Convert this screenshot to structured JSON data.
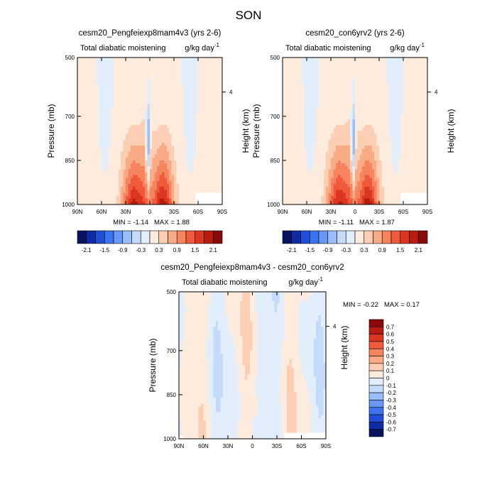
{
  "figure_title": "SON",
  "units_label": "g/kg day",
  "units_exponent": "-1",
  "chart_data": [
    {
      "type": "heatmap",
      "title": "cesm20_Pengfeiexp8mam4v3 (yrs 2-6)",
      "subtitle": "Total diabatic moistening",
      "units": "g/kg day-1",
      "ylabel": "Pressure (mb)",
      "ylabel_right": "Height (km)",
      "xlabel": "",
      "x_ticks": [
        "90N",
        "60N",
        "30N",
        "0",
        "30S",
        "60S",
        "90S"
      ],
      "x_values": [
        90,
        60,
        30,
        0,
        -30,
        -60,
        -90
      ],
      "y_ticks": [
        "500",
        "700",
        "850",
        "1000"
      ],
      "y_values": [
        500,
        700,
        850,
        1000
      ],
      "right_ticks": [
        "4"
      ],
      "ylim": [
        1000,
        500
      ],
      "xlim": [
        90,
        -90
      ],
      "min_label": "MIN = -1.14",
      "max_label": "MAX = 1.88",
      "min": -1.14,
      "max": 1.88,
      "colorbar": {
        "orientation": "horizontal",
        "colors": [
          "#07135f",
          "#0f2ba3",
          "#1f4fd6",
          "#3c73f0",
          "#6a96f5",
          "#9abef8",
          "#c4dcfa",
          "#e2eefc",
          "#fdebdd",
          "#fccfb4",
          "#f9ab86",
          "#f5845f",
          "#ee5a3b",
          "#dc3520",
          "#b81c10",
          "#8a0a0a"
        ],
        "tick_labels": [
          "-2.1",
          "-1.5",
          "-0.9",
          "-0.3",
          "0.3",
          "0.9",
          "1.5",
          "2.1"
        ]
      }
    },
    {
      "type": "heatmap",
      "title": "cesm20_con6yrv2 (yrs 2-6)",
      "subtitle": "Total diabatic moistening",
      "units": "g/kg day-1",
      "ylabel": "Pressure (mb)",
      "ylabel_right": "Height (km)",
      "xlabel": "",
      "x_ticks": [
        "90N",
        "60N",
        "30N",
        "0",
        "30S",
        "60S",
        "90S"
      ],
      "x_values": [
        90,
        60,
        30,
        0,
        -30,
        -60,
        -90
      ],
      "y_ticks": [
        "500",
        "700",
        "850",
        "1000"
      ],
      "y_values": [
        500,
        700,
        850,
        1000
      ],
      "right_ticks": [
        "4"
      ],
      "ylim": [
        1000,
        500
      ],
      "xlim": [
        90,
        -90
      ],
      "min_label": "MIN = -1.11",
      "max_label": "MAX = 1.87",
      "min": -1.11,
      "max": 1.87,
      "colorbar": {
        "orientation": "horizontal",
        "colors": [
          "#07135f",
          "#0f2ba3",
          "#1f4fd6",
          "#3c73f0",
          "#6a96f5",
          "#9abef8",
          "#c4dcfa",
          "#e2eefc",
          "#fdebdd",
          "#fccfb4",
          "#f9ab86",
          "#f5845f",
          "#ee5a3b",
          "#dc3520",
          "#b81c10",
          "#8a0a0a"
        ],
        "tick_labels": [
          "-2.1",
          "-1.5",
          "-0.9",
          "-0.3",
          "0.3",
          "0.9",
          "1.5",
          "2.1"
        ]
      }
    },
    {
      "type": "heatmap",
      "title": "cesm20_Pengfeiexp8mam4v3 - cesm20_con6yrv2",
      "subtitle": "Total diabatic moistening",
      "units": "g/kg day-1",
      "ylabel": "Pressure (mb)",
      "ylabel_right": "Height (km)",
      "xlabel": "",
      "x_ticks": [
        "90N",
        "60N",
        "30N",
        "0",
        "30S",
        "60S",
        "90S"
      ],
      "x_values": [
        90,
        60,
        30,
        0,
        -30,
        -60,
        -90
      ],
      "y_ticks": [
        "500",
        "700",
        "850",
        "1000"
      ],
      "y_values": [
        500,
        700,
        850,
        1000
      ],
      "right_ticks": [
        "4"
      ],
      "ylim": [
        1000,
        500
      ],
      "xlim": [
        90,
        -90
      ],
      "min_label": "MIN = -0.22",
      "max_label": "MAX = 0.17",
      "min": -0.22,
      "max": 0.17,
      "colorbar": {
        "orientation": "vertical",
        "colors": [
          "#07135f",
          "#0f2ba3",
          "#1f4fd6",
          "#3c73f0",
          "#6a96f5",
          "#9abef8",
          "#c4dcfa",
          "#e2eefc",
          "#fdebdd",
          "#fccfb4",
          "#f9ab86",
          "#f5845f",
          "#ee5a3b",
          "#dc3520",
          "#b81c10",
          "#8a0a0a"
        ],
        "tick_labels": [
          "0.7",
          "0.6",
          "0.5",
          "0.4",
          "0.3",
          "0.2",
          "0.1",
          "0",
          "-0.1",
          "-0.2",
          "-0.3",
          "-0.4",
          "-0.5",
          "-0.6",
          "-0.7"
        ]
      }
    }
  ]
}
